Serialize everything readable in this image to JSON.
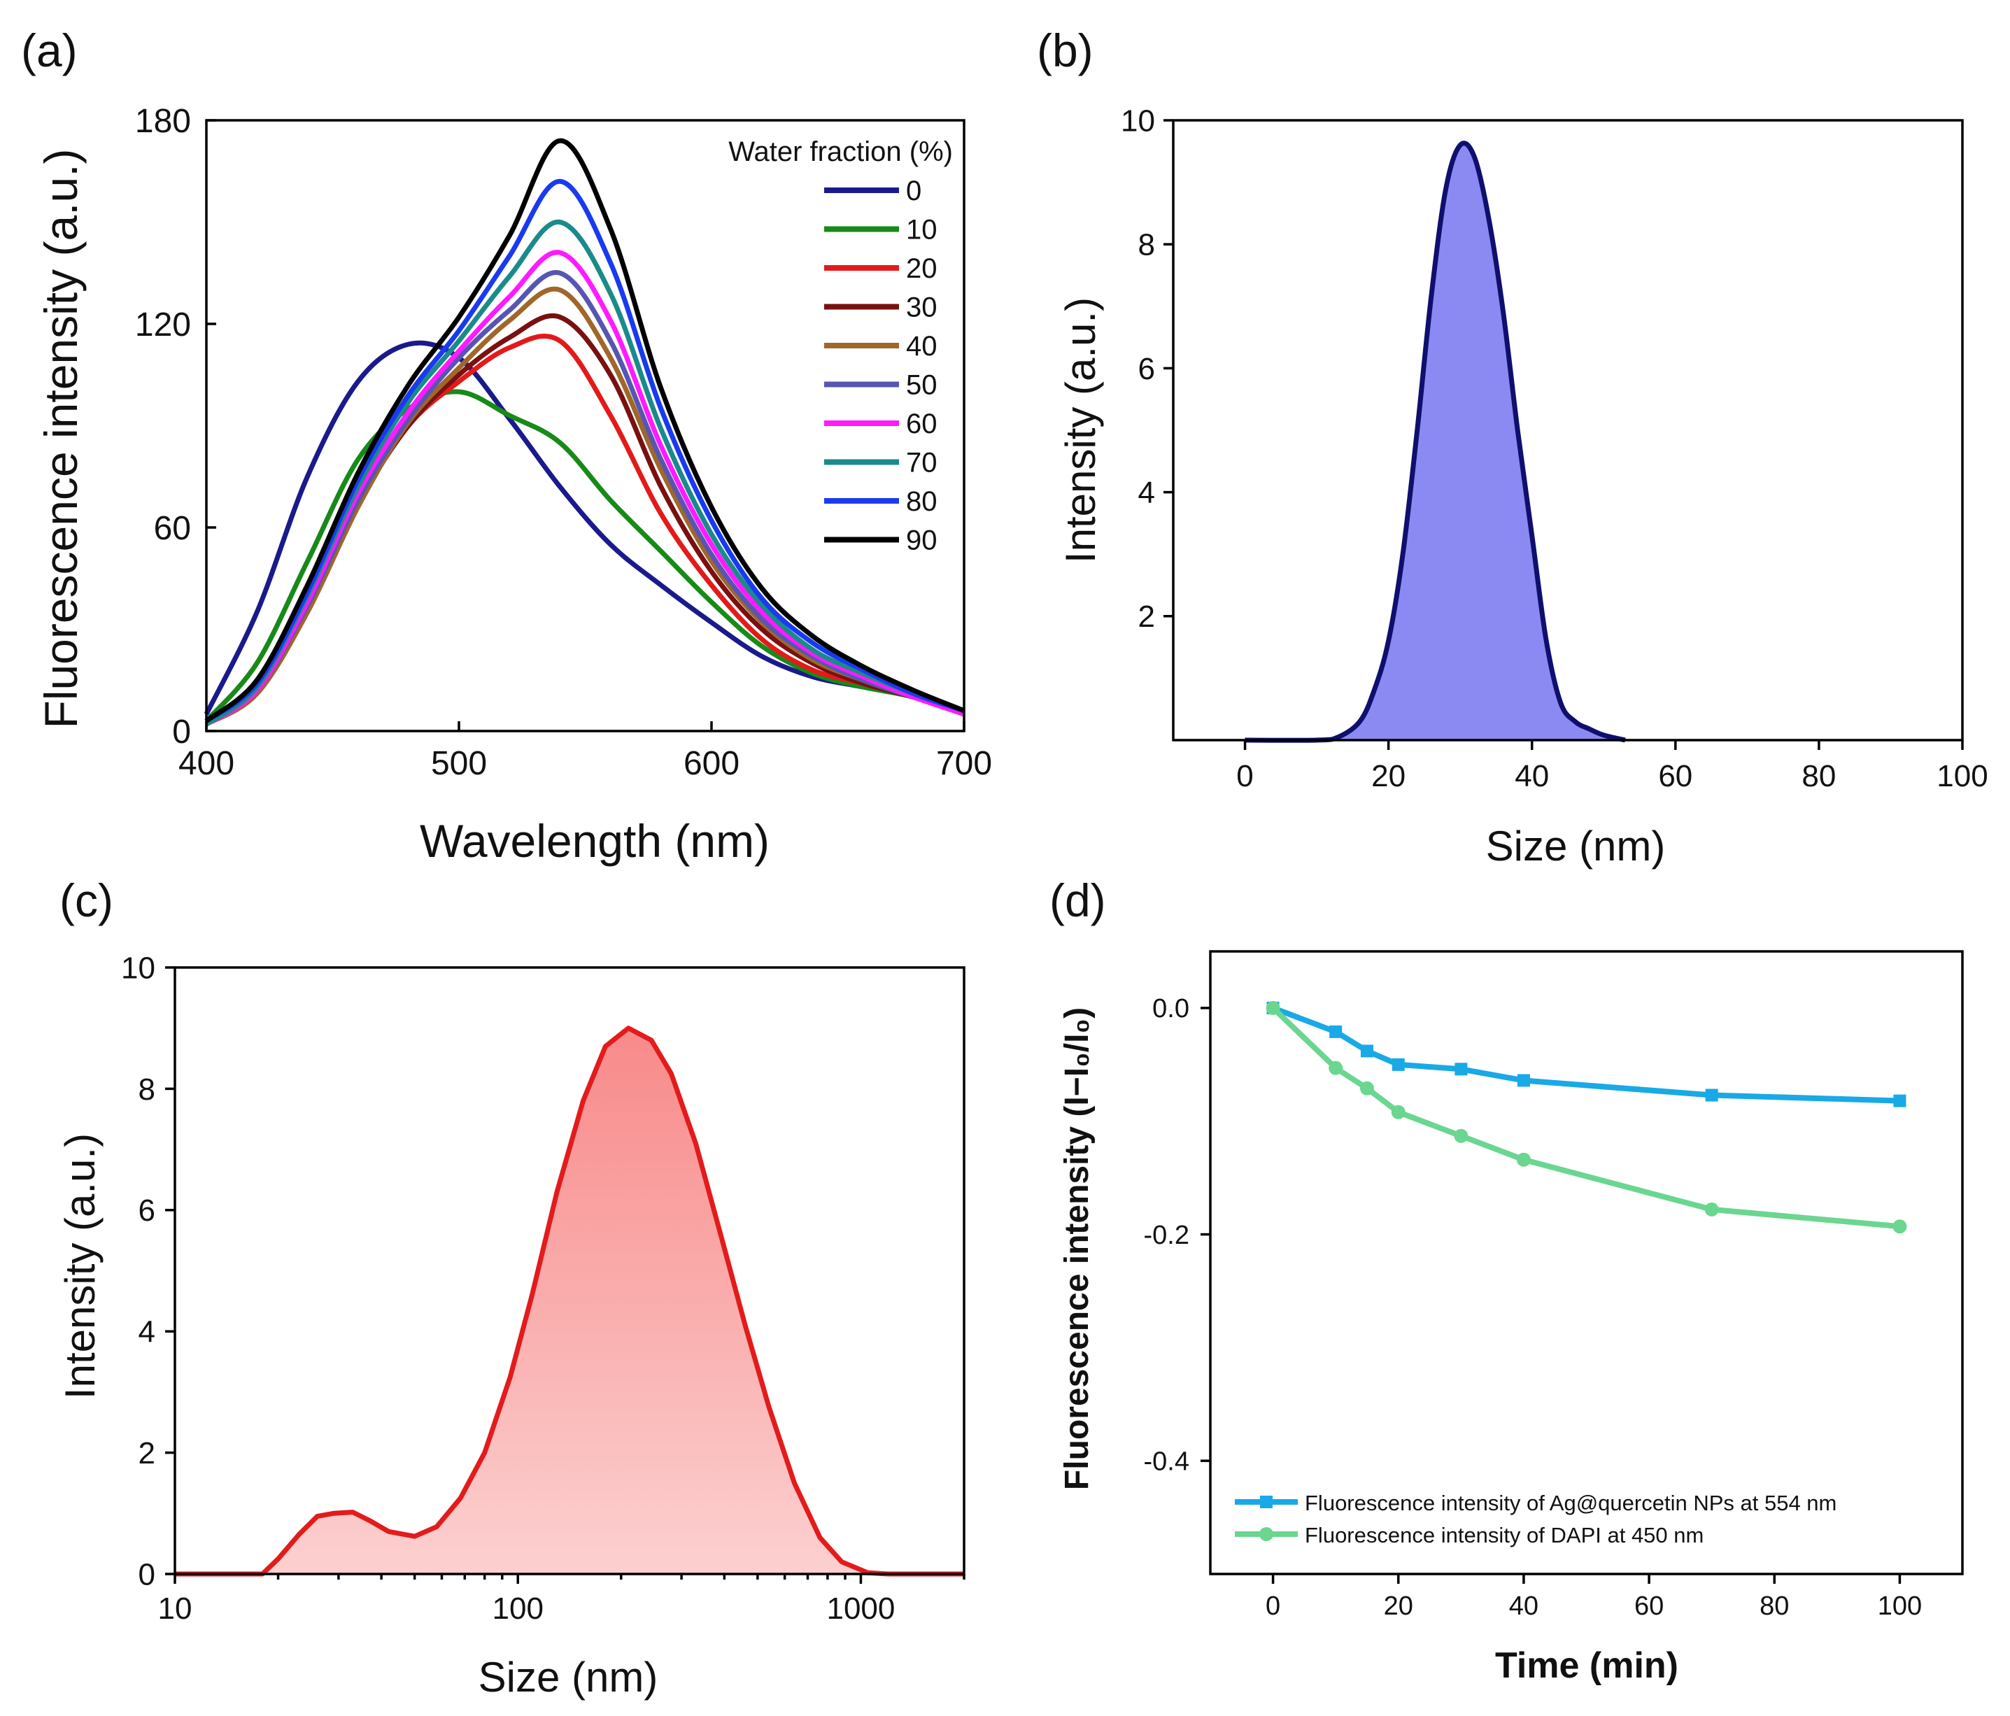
{
  "chart_data": [
    {
      "panel_label": "(a)",
      "type": "line",
      "xlabel": "Wavelength (nm)",
      "ylabel": "Fluorescence intensity (a.u.)",
      "xlim": [
        400,
        700
      ],
      "ylim": [
        0,
        180
      ],
      "xticks": [
        400,
        500,
        600,
        700
      ],
      "yticks": [
        0,
        60,
        120,
        180
      ],
      "xtick_labels": [
        "400",
        "500",
        "600",
        "700"
      ],
      "ytick_labels": [
        "0",
        "60",
        "120",
        "180"
      ],
      "legend_title": "Water fraction (%)",
      "legend_position": "top-right",
      "x": [
        400,
        420,
        440,
        460,
        480,
        500,
        520,
        540,
        560,
        580,
        600,
        620,
        640,
        660,
        680,
        700
      ],
      "series": [
        {
          "name": "0",
          "color": "#1a1a8c",
          "values": [
            5,
            35,
            75,
            103,
            114,
            110,
            92,
            72,
            55,
            43,
            32,
            22,
            16,
            13,
            10,
            5
          ]
        },
        {
          "name": "10",
          "color": "#178a17",
          "values": [
            3,
            20,
            50,
            80,
            95,
            100,
            93,
            85,
            68,
            53,
            38,
            25,
            17,
            13,
            10,
            5
          ]
        },
        {
          "name": "20",
          "color": "#e31a1a",
          "values": [
            2,
            12,
            38,
            67,
            90,
            103,
            113,
            115,
            93,
            64,
            43,
            27,
            18,
            14,
            10,
            5
          ]
        },
        {
          "name": "30",
          "color": "#7a1010",
          "values": [
            2,
            12,
            37,
            67,
            90,
            105,
            116,
            122,
            105,
            72,
            47,
            30,
            20,
            14,
            10,
            5
          ]
        },
        {
          "name": "40",
          "color": "#a0662a",
          "values": [
            2,
            11,
            35,
            66,
            91,
            107,
            121,
            130,
            110,
            77,
            50,
            32,
            21,
            15,
            10,
            5
          ]
        },
        {
          "name": "50",
          "color": "#5656b2",
          "values": [
            2,
            12,
            37,
            68,
            92,
            110,
            124,
            135,
            115,
            80,
            52,
            33,
            22,
            15,
            10,
            5
          ]
        },
        {
          "name": "60",
          "color": "#ff1aff",
          "values": [
            2,
            12,
            38,
            70,
            94,
            112,
            128,
            141,
            121,
            84,
            55,
            35,
            23,
            16,
            10,
            5
          ]
        },
        {
          "name": "70",
          "color": "#1a8a8a",
          "values": [
            2,
            13,
            40,
            72,
            97,
            115,
            134,
            150,
            129,
            89,
            58,
            37,
            24,
            17,
            11,
            6
          ]
        },
        {
          "name": "80",
          "color": "#1a3af0",
          "values": [
            3,
            14,
            41,
            74,
            99,
            118,
            140,
            162,
            138,
            95,
            62,
            39,
            26,
            18,
            11,
            6
          ]
        },
        {
          "name": "90",
          "color": "#000000",
          "values": [
            3,
            15,
            43,
            76,
            102,
            122,
            146,
            174,
            148,
            101,
            66,
            42,
            28,
            19,
            12,
            6
          ]
        }
      ]
    },
    {
      "panel_label": "(b)",
      "type": "area",
      "xlabel": "Size (nm)",
      "ylabel": "Intensity (a.u.)",
      "xlim": [
        -10,
        100
      ],
      "ylim": [
        0,
        10
      ],
      "xticks": [
        0,
        20,
        40,
        60,
        80,
        100
      ],
      "yticks": [
        2,
        4,
        6,
        8,
        10
      ],
      "xtick_labels": [
        "0",
        "20",
        "40",
        "60",
        "80",
        "100"
      ],
      "ytick_labels": [
        "2",
        "4",
        "6",
        "8",
        "10"
      ],
      "line_color": "#0f0f6e",
      "fill_color": "#8a8af2",
      "x": [
        0,
        10,
        13,
        16,
        18,
        20,
        22,
        24,
        26,
        28,
        30,
        32,
        34,
        36,
        38,
        40,
        42,
        44,
        46,
        48,
        50,
        53
      ],
      "values": [
        0,
        0,
        0.05,
        0.3,
        0.8,
        1.6,
        3.0,
        5.0,
        7.2,
        8.9,
        9.6,
        9.4,
        8.4,
        6.9,
        5.0,
        3.3,
        1.6,
        0.6,
        0.3,
        0.18,
        0.08,
        0
      ]
    },
    {
      "panel_label": "(c)",
      "type": "area",
      "xscale": "log",
      "xlabel": "Size (nm)",
      "ylabel": "Intensity (a.u.)",
      "xlim": [
        10,
        2000
      ],
      "ylim": [
        0,
        10
      ],
      "xticks": [
        10,
        100,
        1000
      ],
      "yticks": [
        0,
        2,
        4,
        6,
        8,
        10
      ],
      "xtick_labels": [
        "10",
        "100",
        "1000"
      ],
      "ytick_labels": [
        "0",
        "2",
        "4",
        "6",
        "8",
        "10"
      ],
      "line_color": "#e31b1b",
      "fill_top_color": "#f88a8a",
      "fill_bottom_color": "#fcd0d0",
      "x": [
        10,
        18,
        20,
        23,
        26,
        29,
        33,
        37,
        42,
        50,
        58,
        68,
        80,
        95,
        110,
        130,
        155,
        180,
        210,
        245,
        280,
        330,
        390,
        460,
        540,
        640,
        760,
        880,
        1050,
        1200,
        2000
      ],
      "values": [
        0,
        0,
        0.25,
        0.65,
        0.95,
        1.0,
        1.02,
        0.88,
        0.7,
        0.62,
        0.78,
        1.25,
        2.0,
        3.25,
        4.6,
        6.3,
        7.8,
        8.7,
        9.0,
        8.8,
        8.25,
        7.1,
        5.6,
        4.1,
        2.75,
        1.5,
        0.6,
        0.2,
        0.02,
        0,
        0
      ]
    },
    {
      "panel_label": "(d)",
      "type": "line",
      "xlabel": "Time (min)",
      "ylabel": "Fluorescence intensity (I−I₀/I₀)",
      "xlim": [
        -10,
        110
      ],
      "ylim": [
        -0.5,
        0.05
      ],
      "xticks": [
        0,
        20,
        40,
        60,
        80,
        100
      ],
      "yticks": [
        0.0,
        -0.2,
        -0.4
      ],
      "xtick_labels": [
        "0",
        "20",
        "40",
        "60",
        "80",
        "100"
      ],
      "ytick_labels": [
        "0.0",
        "-0.2",
        "-0.4"
      ],
      "legend_position": "bottom-left",
      "x": [
        0,
        10,
        15,
        20,
        30,
        40,
        70,
        100
      ],
      "series": [
        {
          "name": "Fluorescence intensity of Ag@quercetin NPs at 554 nm",
          "color": "#19a9e6",
          "marker": "square",
          "values": [
            0,
            -0.021,
            -0.038,
            -0.05,
            -0.054,
            -0.064,
            -0.077,
            -0.082
          ]
        },
        {
          "name": "Fluorescence intensity of DAPI at 450 nm",
          "color": "#6ad690",
          "marker": "circle",
          "values": [
            0,
            -0.053,
            -0.071,
            -0.092,
            -0.113,
            -0.134,
            -0.178,
            -0.193
          ]
        }
      ]
    }
  ]
}
